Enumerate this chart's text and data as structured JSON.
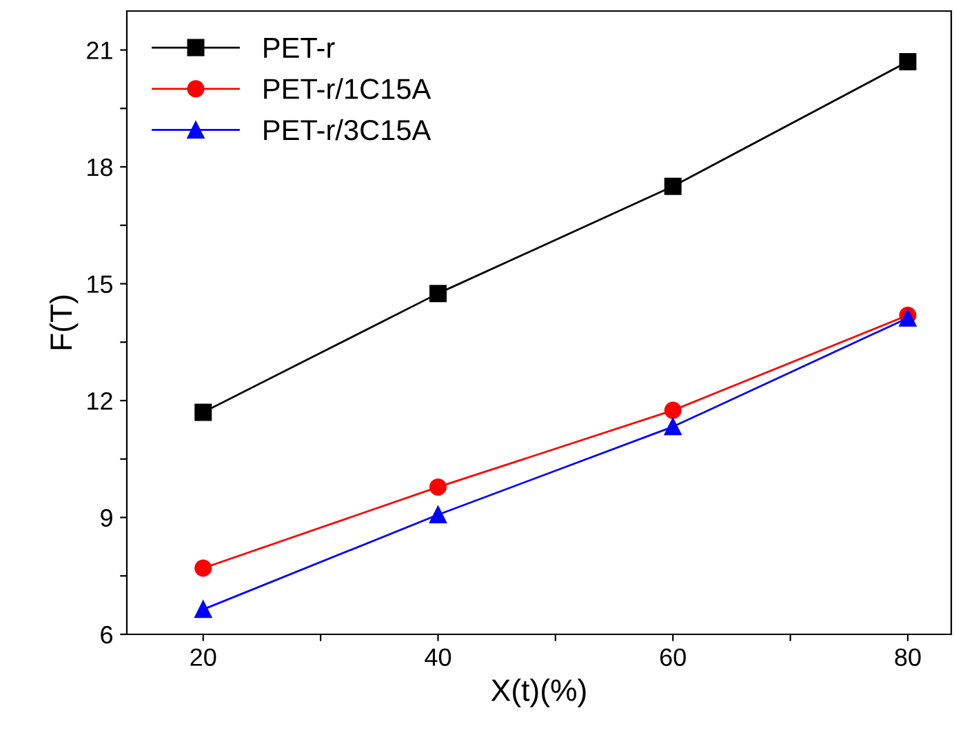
{
  "chart_data": {
    "type": "line",
    "xlabel": "X(t)(%)",
    "ylabel": "F(T)",
    "x": [
      20,
      40,
      60,
      80
    ],
    "series": [
      {
        "name": "PET-r",
        "color": "#000000",
        "marker": "square",
        "values": [
          11.7,
          14.75,
          17.5,
          20.7
        ]
      },
      {
        "name": "PET-r/1C15A",
        "color": "#ff0000",
        "marker": "circle",
        "values": [
          7.7,
          9.78,
          11.75,
          14.19
        ]
      },
      {
        "name": "PET-r/3C15A",
        "color": "#0000ff",
        "marker": "triangle",
        "values": [
          6.64,
          9.07,
          11.33,
          14.12
        ]
      }
    ],
    "xlim": [
      13.5,
      83.7
    ],
    "ylim": [
      6,
      22
    ],
    "xticks": [
      20,
      {
        "value": 30,
        "label": null
      },
      40,
      {
        "value": 50,
        "label": null
      },
      60,
      {
        "value": 70,
        "label": null
      },
      80
    ],
    "yticks": [
      6,
      {
        "value": 7.5,
        "label": null
      },
      9,
      {
        "value": 10.5,
        "label": null
      },
      12,
      {
        "value": 13.5,
        "label": null
      },
      15,
      {
        "value": 16.5,
        "label": null
      },
      18,
      {
        "value": 19.5,
        "label": null
      },
      21
    ],
    "grid": false,
    "legend": "top left",
    "line_style": "solid"
  }
}
